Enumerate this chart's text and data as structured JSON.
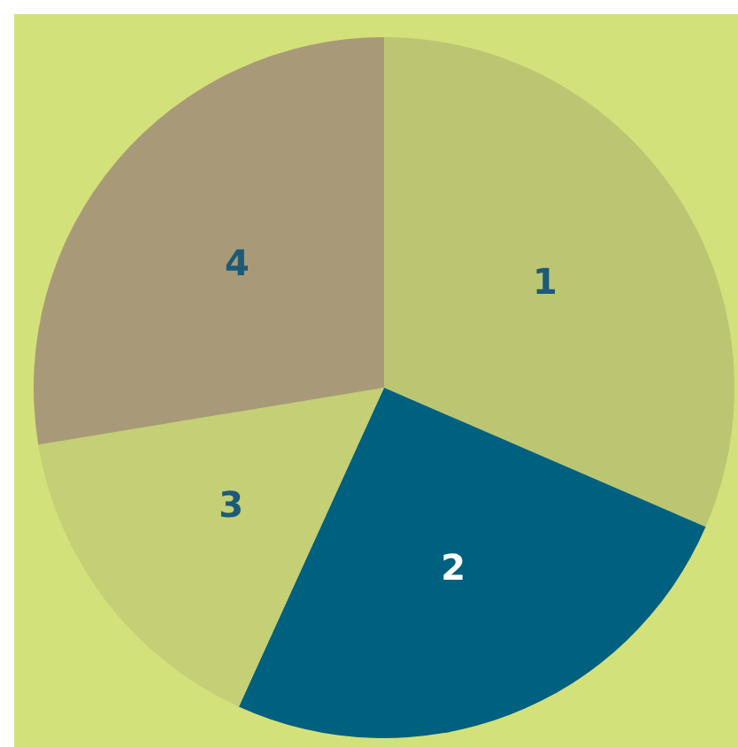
{
  "chart_data": {
    "type": "pie",
    "categories": [
      "1",
      "2",
      "3",
      "4"
    ],
    "values": [
      31.5,
      25.3,
      15.6,
      27.6
    ],
    "colors": [
      "#bcc672",
      "#00607f",
      "#c4cf76",
      "#a89a78"
    ]
  }
}
